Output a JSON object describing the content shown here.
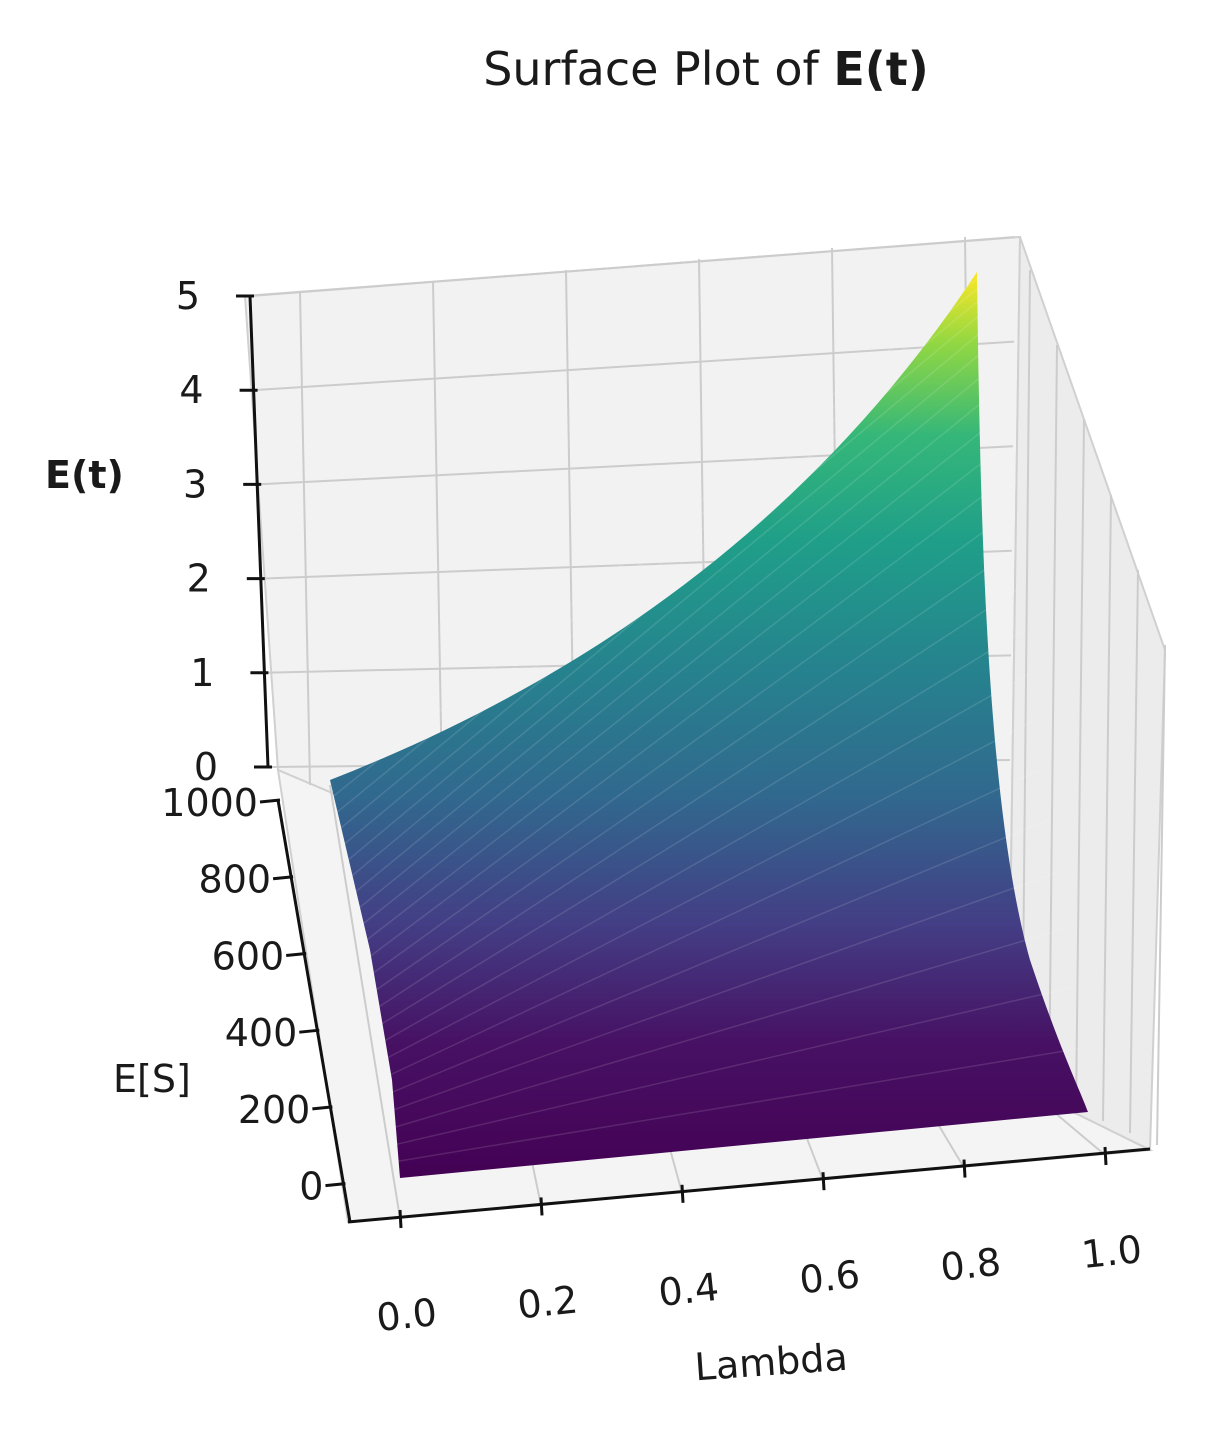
{
  "chart_data": {
    "type": "surface",
    "title_prefix": "Surface Plot of ",
    "title_bold": "E(t)",
    "xlabel": "Lambda",
    "ylabel": "E[S]",
    "zlabel": "E(t)",
    "x_ticks": [
      "0.0",
      "0.2",
      "0.4",
      "0.6",
      "0.8",
      "1.0"
    ],
    "y_ticks": [
      "0",
      "200",
      "400",
      "600",
      "800",
      "1000"
    ],
    "z_ticks": [
      "0",
      "1",
      "2",
      "3",
      "4",
      "5"
    ],
    "xlim": [
      0,
      1
    ],
    "ylim": [
      0,
      1100
    ],
    "zlim": [
      0,
      5
    ],
    "colormap": "viridis",
    "grid": true,
    "surface_corners": [
      {
        "lambda": 0.0,
        "es": 0,
        "et": 0.0
      },
      {
        "lambda": 1.0,
        "es": 0,
        "et": 0.0
      },
      {
        "lambda": 0.0,
        "es": 1000,
        "et": 0.0
      },
      {
        "lambda": 1.0,
        "es": 1000,
        "et": 5.2
      }
    ]
  }
}
